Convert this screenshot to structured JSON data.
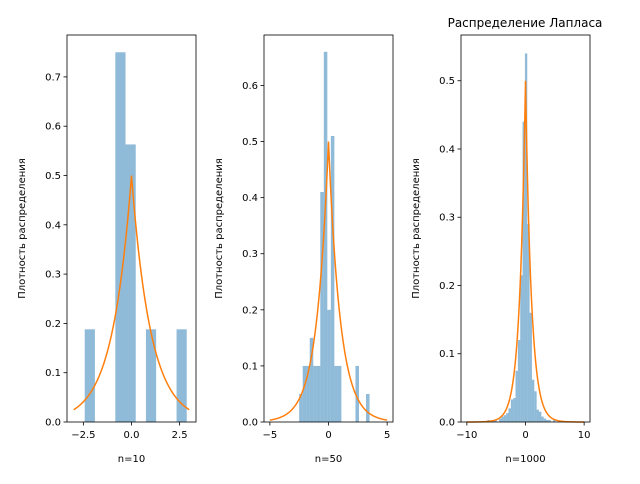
{
  "colors": {
    "bars": "#1f77b4",
    "curve": "#ff7f0e"
  },
  "chart_data": [
    {
      "type": "bar",
      "xlabel": "n=10",
      "ylabel": "Плотность распределения",
      "xlim": [
        -3.35,
        3.35
      ],
      "ylim": [
        0,
        0.785
      ],
      "xticks": [
        -2.5,
        0.0,
        2.5
      ],
      "xtick_labels": [
        "−2.5",
        "0.0",
        "2.5"
      ],
      "yticks": [
        0,
        0.1,
        0.2,
        0.3,
        0.4,
        0.5,
        0.6,
        0.7
      ],
      "ytick_labels": [
        "0.0",
        "0.1",
        "0.2",
        "0.3",
        "0.4",
        "0.5",
        "0.6",
        "0.7"
      ],
      "histogram": {
        "edges": [
          -2.43,
          -1.9,
          -1.37,
          -0.84,
          -0.31,
          0.22,
          0.75,
          1.28,
          1.81,
          2.34,
          2.87
        ],
        "densities": [
          0.188,
          0,
          0,
          0.75,
          0.563,
          0,
          0.188,
          0,
          0,
          0.188
        ]
      },
      "curve": {
        "name": "Laplace pdf",
        "x": [
          -3,
          3
        ],
        "scale": 1,
        "peak": 0.5
      }
    },
    {
      "type": "bar",
      "xlabel": "n=50",
      "ylabel": "Плотность распределения",
      "xlim": [
        -5.5,
        5.5
      ],
      "ylim": [
        0,
        0.69
      ],
      "xticks": [
        -5,
        0,
        5
      ],
      "xtick_labels": [
        "−5",
        "0",
        "5"
      ],
      "yticks": [
        0,
        0.1,
        0.2,
        0.3,
        0.4,
        0.5,
        0.6
      ],
      "ytick_labels": [
        "0.0",
        "0.1",
        "0.2",
        "0.3",
        "0.4",
        "0.5",
        "0.6"
      ],
      "histogram": {
        "edges": [
          -2.5,
          -2.2,
          -1.9,
          -1.6,
          -1.3,
          -1.0,
          -0.7,
          -0.4,
          -0.1,
          0.2,
          0.5,
          0.8,
          1.1,
          1.4,
          1.7,
          2.0,
          2.3,
          2.6,
          2.9,
          3.2,
          3.5
        ],
        "densities": [
          0.05,
          0.1,
          0.1,
          0.15,
          0.1,
          0.1,
          0.41,
          0.66,
          0.2,
          0.51,
          0.1,
          0.1,
          0,
          0,
          0,
          0,
          0.1,
          0,
          0,
          0.05
        ]
      },
      "curve": {
        "name": "Laplace pdf",
        "x": [
          -5,
          5
        ],
        "scale": 1,
        "peak": 0.5
      }
    },
    {
      "type": "bar",
      "title": "Распределение Лапласа",
      "xlabel": "n=1000",
      "ylabel": "Плотность распределения",
      "xlim": [
        -11,
        11
      ],
      "ylim": [
        0,
        0.567
      ],
      "xticks": [
        -10,
        0,
        10
      ],
      "xtick_labels": [
        "−10",
        "0",
        "10"
      ],
      "yticks": [
        0,
        0.1,
        0.2,
        0.3,
        0.4,
        0.5
      ],
      "ytick_labels": [
        "0.0",
        "0.1",
        "0.2",
        "0.3",
        "0.4",
        "0.5"
      ],
      "histogram": {
        "edges": [
          -6.5,
          -6.1,
          -5.7,
          -5.3,
          -4.9,
          -4.5,
          -4.1,
          -3.7,
          -3.3,
          -2.9,
          -2.5,
          -2.1,
          -1.7,
          -1.3,
          -0.9,
          -0.5,
          -0.1,
          0.3,
          0.7,
          1.1,
          1.5,
          1.9,
          2.3,
          2.7,
          3.1,
          3.5,
          3.9,
          4.3,
          4.7,
          5.1
        ],
        "densities": [
          0.003,
          0,
          0.003,
          0.003,
          0,
          0.005,
          0.008,
          0.01,
          0.013,
          0.02,
          0.033,
          0.035,
          0.075,
          0.12,
          0.215,
          0.44,
          0.54,
          0.29,
          0.16,
          0.062,
          0.045,
          0.018,
          0.015,
          0.008,
          0.005,
          0.003,
          0.003,
          0,
          0.003
        ]
      },
      "curve": {
        "name": "Laplace pdf",
        "x": [
          -10,
          10
        ],
        "scale": 1,
        "peak": 0.5
      }
    }
  ]
}
